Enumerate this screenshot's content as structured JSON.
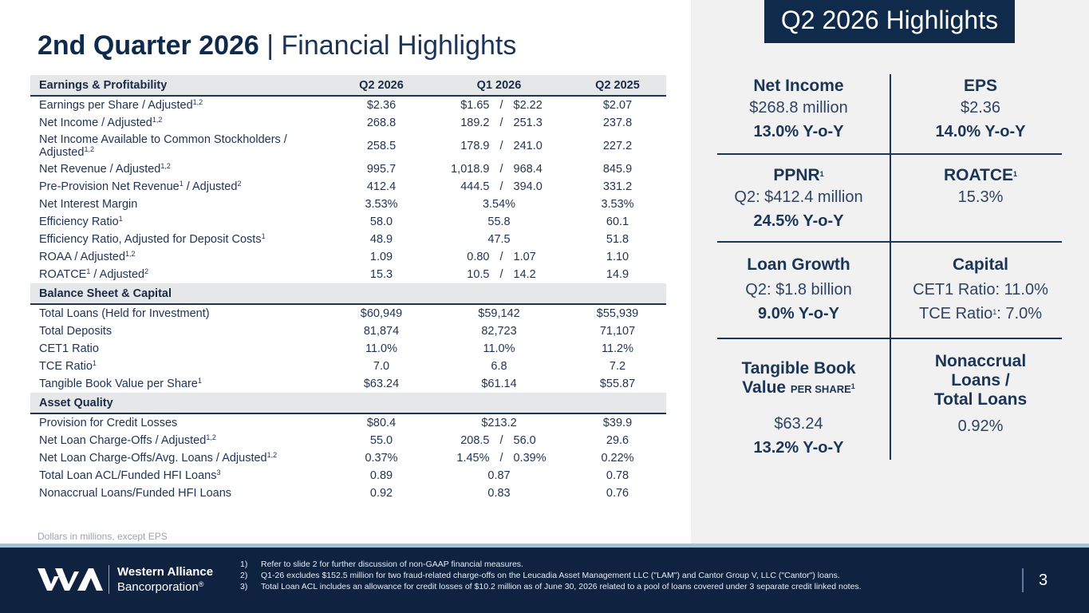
{
  "title": {
    "bold": "2nd Quarter 2026",
    "sep": " | ",
    "rest": "Financial Highlights"
  },
  "sections": [
    {
      "header": [
        "Earnings & Profitability",
        "Q2 2026",
        "Q1 2026",
        "Q2 2025"
      ],
      "rows": [
        {
          "label": "Earnings per Share / Adjusted",
          "sup": "1,2",
          "q2": "$2.36",
          "q1a": "$1.65",
          "q1b": "$2.22",
          "py": "$2.07"
        },
        {
          "label": "Net Income / Adjusted",
          "sup": "1,2",
          "q2": "268.8",
          "q1a": "189.2",
          "q1b": "251.3",
          "py": "237.8"
        },
        {
          "label": "Net Income Available to Common Stockholders / Adjusted",
          "sup": "1,2",
          "q2": "258.5",
          "q1a": "178.9",
          "q1b": "241.0",
          "py": "227.2"
        },
        {
          "label": "Net Revenue / Adjusted",
          "sup": "1,2",
          "q2": "995.7",
          "q1a": "1,018.9",
          "q1b": "968.4",
          "py": "845.9"
        },
        {
          "label": "Pre-Provision Net Revenue",
          "sup": "1",
          "label2": " / Adjusted",
          "sup2": "2",
          "q2": "412.4",
          "q1a": "444.5",
          "q1b": "394.0",
          "py": "331.2"
        },
        {
          "label": "Net Interest Margin",
          "q2": "3.53%",
          "q1": "3.54%",
          "py": "3.53%"
        },
        {
          "label": "Efficiency Ratio",
          "sup": "1",
          "q2": "58.0",
          "q1": "55.8",
          "py": "60.1"
        },
        {
          "label": "Efficiency Ratio, Adjusted for Deposit Costs",
          "sup": "1",
          "q2": "48.9",
          "q1": "47.5",
          "py": "51.8"
        },
        {
          "label": "ROAA / Adjusted",
          "sup": "1,2",
          "q2": "1.09",
          "q1a": "0.80",
          "q1b": "1.07",
          "py": "1.10"
        },
        {
          "label": "ROATCE",
          "sup": "1",
          "label2": " / Adjusted",
          "sup2": "2",
          "q2": "15.3",
          "q1a": "10.5",
          "q1b": "14.2",
          "py": "14.9"
        }
      ]
    },
    {
      "header": [
        "Balance Sheet & Capital",
        "",
        "",
        ""
      ],
      "rows": [
        {
          "label": "Total Loans (Held for Investment)",
          "q2": "$60,949",
          "q1": "$59,142",
          "py": "$55,939"
        },
        {
          "label": "Total Deposits",
          "q2": "81,874",
          "q1": "82,723",
          "py": "71,107"
        },
        {
          "label": "CET1 Ratio",
          "q2": "11.0%",
          "q1": "11.0%",
          "py": "11.2%"
        },
        {
          "label": "TCE Ratio",
          "sup": "1",
          "q2": "7.0",
          "q1": "6.8",
          "py": "7.2"
        },
        {
          "label": "Tangible Book Value per Share",
          "sup": "1",
          "q2": "$63.24",
          "q1": "$61.14",
          "py": "$55.87"
        }
      ]
    },
    {
      "header": [
        "Asset Quality",
        "",
        "",
        ""
      ],
      "rows": [
        {
          "label": "Provision for Credit Losses",
          "q2": "$80.4",
          "q1": "$213.2",
          "py": "$39.9"
        },
        {
          "label": "Net Loan Charge-Offs / Adjusted",
          "sup": "1,2",
          "q2": "55.0",
          "q1a": "208.5",
          "q1b": "56.0",
          "py": "29.6"
        },
        {
          "label": "Net Loan Charge-Offs/Avg. Loans / Adjusted",
          "sup": "1,2",
          "q2": "0.37%",
          "q1a": "1.45%",
          "q1b": "0.39%",
          "py": "0.22%"
        },
        {
          "label": "Total Loan ACL/Funded HFI Loans",
          "sup": "3",
          "q2": "0.89",
          "q1": "0.87",
          "py": "0.78"
        },
        {
          "label": "Nonaccrual Loans/Funded HFI Loans",
          "q2": "0.92",
          "q1": "0.83",
          "py": "0.76"
        }
      ]
    }
  ],
  "slash": "/",
  "units_note": "Dollars in millions, except EPS",
  "highlights_badge": "Q2 2026 Highlights",
  "highlights": {
    "net_income": {
      "title": "Net Income",
      "value": "$268.8 million",
      "yoy": "13.0% Y-o-Y"
    },
    "eps": {
      "title": "EPS",
      "value": "$2.36",
      "yoy": "14.0% Y-o-Y"
    },
    "ppnr": {
      "title": "PPNR",
      "sup": "1",
      "value": "Q2: $412.4 million",
      "yoy": "24.5% Y-o-Y"
    },
    "roatce": {
      "title": "ROATCE",
      "sup": "1",
      "value": "15.3%"
    },
    "loan_growth": {
      "title": "Loan Growth",
      "value": "Q2: $1.8 billion",
      "yoy": "9.0%  Y-o-Y"
    },
    "capital": {
      "title": "Capital",
      "value": "CET1 Ratio: 11.0%",
      "value2": "TCE Ratio",
      "value2_sup": "1",
      "value2_tail": ": 7.0%"
    },
    "tbv": {
      "title1": "Tangible Book",
      "title2": "Value",
      "title2_small": "PER SHARE",
      "sup": "1",
      "value": "$63.24",
      "yoy": "13.2%  Y-o-Y"
    },
    "nonaccrual": {
      "title1": "Nonaccrual",
      "title2": "Loans /",
      "title3": "Total Loans",
      "value": "0.92%"
    }
  },
  "footer": {
    "brand1": "Western Alliance",
    "brand2": "Bancorporation",
    "brand2_mark": "®",
    "notes": [
      {
        "n": "1)",
        "text": "Refer to slide 2 for further discussion of non-GAAP financial measures."
      },
      {
        "n": "2)",
        "text": "Q1-26 excludes $152.5 million for two fraud-related charge-offs on the Leucadia Asset Management LLC (\"LAM\") and Cantor Group V, LLC (\"Cantor\") loans."
      },
      {
        "n": "3)",
        "text": "Total Loan ACL includes an allowance for credit losses of $10.2 million as of June 30, 2026 related to a pool of loans covered under 3 separate credit linked notes."
      }
    ],
    "page": "3"
  },
  "colors": {
    "navy": "#0f2340",
    "accent": "#9cc5de",
    "panel": "#f1f1f2",
    "section": "#e6e7e9"
  }
}
